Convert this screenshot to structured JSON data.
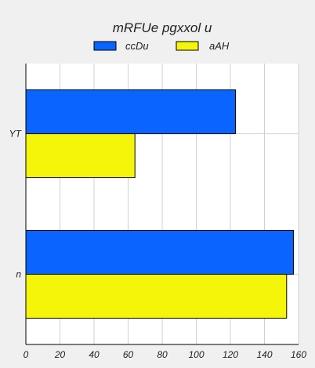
{
  "chart_data": {
    "type": "bar",
    "orientation": "horizontal",
    "title": "mRFUe pgxxol u",
    "xlabel": "",
    "ylabel": "",
    "categories": [
      "YT",
      "n"
    ],
    "series": [
      {
        "name": "ccDu",
        "color": "#0a64ff",
        "values": [
          123,
          157
        ]
      },
      {
        "name": "aAH",
        "color": "#f5f50a",
        "values": [
          64,
          153
        ]
      }
    ],
    "xlim": [
      0,
      160
    ],
    "xticks": [
      0,
      20,
      40,
      60,
      80,
      100,
      120,
      140,
      160
    ],
    "grid": true,
    "legend_position": "top"
  }
}
